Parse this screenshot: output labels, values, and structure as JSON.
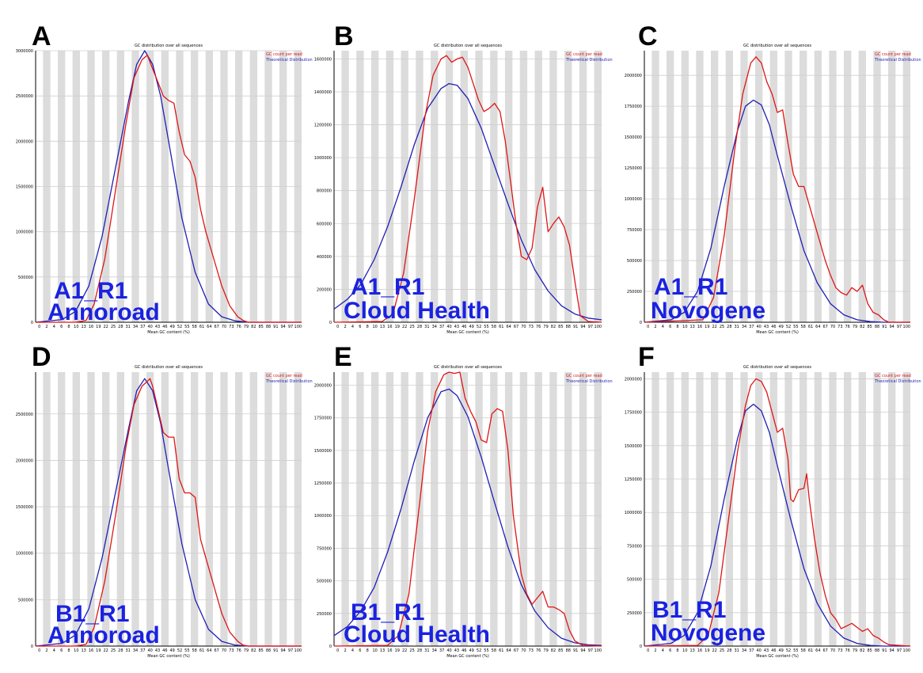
{
  "panels": [
    {
      "letter": "A",
      "overlay_line1": "A1_R1",
      "overlay_line2": "Annoroad",
      "yticks": [
        0,
        500000,
        1000000,
        1500000,
        2000000,
        2500000,
        3000000
      ],
      "ymax": 3000000
    },
    {
      "letter": "B",
      "overlay_line1": "A1_R1",
      "overlay_line2": "Cloud Health",
      "yticks": [
        0,
        200000,
        400000,
        600000,
        800000,
        1000000,
        1200000,
        1400000,
        1600000
      ],
      "ymax": 1650000
    },
    {
      "letter": "C",
      "overlay_line1": "A1_R1",
      "overlay_line2": "Novogene",
      "yticks": [
        0,
        250000,
        500000,
        750000,
        1000000,
        1250000,
        1500000,
        1750000,
        2000000
      ],
      "ymax": 2200000
    },
    {
      "letter": "D",
      "overlay_line1": "B1_R1",
      "overlay_line2": "Annoroad",
      "yticks": [
        0,
        500000,
        1000000,
        1500000,
        2000000,
        2500000
      ],
      "ymax": 2950000
    },
    {
      "letter": "E",
      "overlay_line1": "B1_R1",
      "overlay_line2": "Cloud Health",
      "yticks": [
        0,
        250000,
        500000,
        750000,
        1000000,
        1250000,
        1500000,
        1750000,
        2000000
      ],
      "ymax": 2100000
    },
    {
      "letter": "F",
      "overlay_line1": "B1_R1",
      "overlay_line2": "Novogene",
      "yticks": [
        0,
        250000,
        500000,
        750000,
        1000000,
        1250000,
        1500000,
        1750000,
        2000000
      ],
      "ymax": 2050000
    }
  ],
  "common": {
    "chart_title": "GC distribution over all sequences",
    "x_axis_label": "Mean GC content (%)",
    "legend_observed": "GC count per read",
    "legend_theoretical": "Theoretical Distribution",
    "xticks": [
      "0",
      "2",
      "4",
      "6",
      "8",
      "10",
      "13",
      "16",
      "19",
      "22",
      "25",
      "28",
      "31",
      "34",
      "37",
      "40",
      "43",
      "46",
      "49",
      "52",
      "55",
      "58",
      "61",
      "64",
      "67",
      "70",
      "73",
      "76",
      "79",
      "82",
      "85",
      "88",
      "91",
      "94",
      "97",
      "100"
    ],
    "colors": {
      "observed": "#e01515",
      "theoretical": "#1f1fb4",
      "overlay_text": "#1a22e0",
      "grid_band": "#dcdcdc"
    }
  },
  "chart_data": [
    {
      "type": "line",
      "panel": "A",
      "title": "GC distribution over all sequences",
      "xlabel": "Mean GC content (%)",
      "xlim": [
        0,
        100
      ],
      "ylim": [
        0,
        3000000
      ],
      "series": [
        {
          "name": "GC count per read",
          "x": [
            0,
            15,
            19,
            22,
            26,
            30,
            34,
            37,
            40,
            42,
            44,
            46,
            48,
            50,
            52,
            54,
            56,
            58,
            60,
            62,
            64,
            67,
            70,
            73,
            76,
            78,
            80,
            100
          ],
          "values": [
            0,
            0,
            20000,
            200000,
            700000,
            1450000,
            2200000,
            2700000,
            2900000,
            2950000,
            2800000,
            2650000,
            2500000,
            2450000,
            2420000,
            2100000,
            1850000,
            1780000,
            1600000,
            1250000,
            1000000,
            700000,
            400000,
            180000,
            60000,
            20000,
            0,
            0
          ]
        },
        {
          "name": "Theoretical Distribution",
          "x": [
            0,
            10,
            15,
            20,
            25,
            30,
            35,
            38,
            41,
            44,
            47,
            50,
            55,
            60,
            65,
            70,
            75,
            80,
            85,
            100
          ],
          "values": [
            0,
            30000,
            120000,
            400000,
            950000,
            1700000,
            2450000,
            2850000,
            3000000,
            2850000,
            2500000,
            2000000,
            1150000,
            550000,
            200000,
            60000,
            15000,
            0,
            0,
            0
          ]
        }
      ]
    },
    {
      "type": "line",
      "panel": "B",
      "title": "GC distribution over all sequences",
      "xlabel": "Mean GC content (%)",
      "xlim": [
        0,
        100
      ],
      "ylim": [
        0,
        1650000
      ],
      "series": [
        {
          "name": "GC count per read",
          "x": [
            0,
            18,
            22,
            26,
            30,
            34,
            37,
            40,
            42,
            44,
            46,
            48,
            50,
            52,
            54,
            56,
            58,
            60,
            62,
            64,
            66,
            68,
            70,
            72,
            74,
            76,
            78,
            80,
            82,
            84,
            86,
            88,
            90,
            92,
            95,
            100
          ],
          "values": [
            0,
            5000,
            50000,
            300000,
            750000,
            1250000,
            1500000,
            1600000,
            1620000,
            1580000,
            1600000,
            1610000,
            1550000,
            1450000,
            1350000,
            1280000,
            1300000,
            1330000,
            1280000,
            1100000,
            850000,
            600000,
            400000,
            380000,
            450000,
            700000,
            820000,
            550000,
            600000,
            640000,
            580000,
            470000,
            250000,
            40000,
            5000,
            0
          ]
        },
        {
          "name": "Theoretical Distribution",
          "x": [
            0,
            5,
            10,
            15,
            20,
            25,
            30,
            35,
            40,
            43,
            46,
            50,
            55,
            60,
            65,
            70,
            75,
            80,
            85,
            90,
            95,
            100
          ],
          "values": [
            80000,
            140000,
            230000,
            380000,
            580000,
            820000,
            1080000,
            1300000,
            1420000,
            1450000,
            1440000,
            1360000,
            1180000,
            950000,
            720000,
            500000,
            320000,
            190000,
            100000,
            50000,
            25000,
            15000
          ]
        }
      ]
    },
    {
      "type": "line",
      "panel": "C",
      "title": "GC distribution over all sequences",
      "xlabel": "Mean GC content (%)",
      "xlim": [
        0,
        100
      ],
      "ylim": [
        0,
        2200000
      ],
      "series": [
        {
          "name": "GC count per read",
          "x": [
            0,
            22,
            26,
            30,
            34,
            37,
            40,
            42,
            44,
            46,
            48,
            50,
            52,
            54,
            56,
            58,
            60,
            62,
            64,
            66,
            68,
            70,
            72,
            74,
            76,
            78,
            80,
            82,
            84,
            86,
            88,
            90,
            92,
            100
          ],
          "values": [
            0,
            20000,
            200000,
            700000,
            1400000,
            1850000,
            2100000,
            2150000,
            2100000,
            1950000,
            1850000,
            1700000,
            1720000,
            1450000,
            1200000,
            1100000,
            1100000,
            950000,
            800000,
            650000,
            500000,
            380000,
            280000,
            240000,
            220000,
            280000,
            250000,
            300000,
            150000,
            80000,
            60000,
            20000,
            0,
            0
          ]
        },
        {
          "name": "Theoretical Distribution",
          "x": [
            0,
            10,
            15,
            20,
            25,
            30,
            35,
            38,
            41,
            44,
            47,
            50,
            55,
            60,
            65,
            70,
            75,
            80,
            85,
            90,
            100
          ],
          "values": [
            0,
            20000,
            80000,
            250000,
            600000,
            1100000,
            1550000,
            1750000,
            1800000,
            1760000,
            1600000,
            1350000,
            950000,
            580000,
            320000,
            150000,
            60000,
            20000,
            5000,
            0,
            0
          ]
        }
      ]
    },
    {
      "type": "line",
      "panel": "D",
      "title": "GC distribution over all sequences",
      "xlabel": "Mean GC content (%)",
      "xlim": [
        0,
        100
      ],
      "ylim": [
        0,
        2950000
      ],
      "series": [
        {
          "name": "GC count per read",
          "x": [
            0,
            15,
            19,
            22,
            26,
            30,
            34,
            37,
            40,
            42,
            43,
            44,
            46,
            48,
            50,
            52,
            54,
            56,
            58,
            60,
            62,
            64,
            67,
            70,
            73,
            76,
            78,
            80,
            100
          ],
          "values": [
            0,
            0,
            20000,
            200000,
            700000,
            1400000,
            2150000,
            2600000,
            2800000,
            2850000,
            2880000,
            2800000,
            2550000,
            2300000,
            2250000,
            2250000,
            1800000,
            1650000,
            1650000,
            1600000,
            1150000,
            950000,
            650000,
            350000,
            150000,
            50000,
            10000,
            0,
            0
          ]
        },
        {
          "name": "Theoretical Distribution",
          "x": [
            0,
            10,
            15,
            20,
            25,
            30,
            35,
            38,
            41,
            44,
            47,
            50,
            55,
            60,
            65,
            70,
            75,
            80,
            100
          ],
          "values": [
            0,
            30000,
            120000,
            400000,
            950000,
            1650000,
            2350000,
            2750000,
            2880000,
            2750000,
            2400000,
            1900000,
            1100000,
            500000,
            180000,
            50000,
            10000,
            0,
            0
          ]
        }
      ]
    },
    {
      "type": "line",
      "panel": "E",
      "title": "GC distribution over all sequences",
      "xlabel": "Mean GC content (%)",
      "xlim": [
        0,
        100
      ],
      "ylim": [
        0,
        2100000
      ],
      "series": [
        {
          "name": "GC count per read",
          "x": [
            0,
            20,
            24,
            28,
            32,
            35,
            38,
            41,
            43,
            45,
            47,
            49,
            51,
            53,
            55,
            57,
            59,
            61,
            63,
            65,
            67,
            70,
            72,
            74,
            76,
            78,
            80,
            82,
            84,
            86,
            88,
            90,
            93,
            100
          ],
          "values": [
            0,
            5000,
            80000,
            400000,
            1100000,
            1650000,
            1950000,
            2080000,
            2100000,
            2090000,
            2100000,
            1900000,
            1800000,
            1720000,
            1580000,
            1560000,
            1780000,
            1820000,
            1800000,
            1500000,
            1000000,
            550000,
            400000,
            320000,
            370000,
            420000,
            300000,
            300000,
            280000,
            250000,
            120000,
            40000,
            5000,
            0
          ]
        },
        {
          "name": "Theoretical Distribution",
          "x": [
            0,
            5,
            10,
            15,
            20,
            25,
            30,
            35,
            40,
            43,
            46,
            50,
            55,
            60,
            65,
            70,
            75,
            80,
            85,
            90,
            95,
            100
          ],
          "values": [
            80000,
            150000,
            270000,
            450000,
            720000,
            1050000,
            1420000,
            1750000,
            1950000,
            1970000,
            1920000,
            1760000,
            1450000,
            1100000,
            760000,
            470000,
            270000,
            140000,
            60000,
            25000,
            10000,
            5000
          ]
        }
      ]
    },
    {
      "type": "line",
      "panel": "F",
      "title": "GC distribution over all sequences",
      "xlabel": "Mean GC content (%)",
      "xlim": [
        0,
        100
      ],
      "ylim": [
        0,
        2050000
      ],
      "series": [
        {
          "name": "GC count per read",
          "x": [
            0,
            20,
            24,
            28,
            32,
            35,
            38,
            40,
            42,
            44,
            46,
            48,
            50,
            52,
            54,
            55,
            56,
            58,
            60,
            61,
            62,
            64,
            66,
            68,
            70,
            72,
            74,
            76,
            78,
            80,
            82,
            84,
            86,
            88,
            90,
            92,
            100
          ],
          "values": [
            0,
            5000,
            80000,
            400000,
            1000000,
            1450000,
            1800000,
            1950000,
            2000000,
            1980000,
            1900000,
            1750000,
            1600000,
            1630000,
            1400000,
            1100000,
            1080000,
            1170000,
            1180000,
            1290000,
            1100000,
            800000,
            550000,
            380000,
            250000,
            200000,
            130000,
            150000,
            170000,
            140000,
            110000,
            130000,
            80000,
            60000,
            30000,
            10000,
            0
          ]
        },
        {
          "name": "Theoretical Distribution",
          "x": [
            0,
            10,
            15,
            20,
            25,
            30,
            35,
            38,
            41,
            44,
            47,
            50,
            55,
            60,
            65,
            70,
            75,
            80,
            85,
            90,
            100
          ],
          "values": [
            0,
            20000,
            80000,
            250000,
            600000,
            1100000,
            1550000,
            1760000,
            1810000,
            1760000,
            1600000,
            1350000,
            950000,
            580000,
            320000,
            150000,
            60000,
            20000,
            5000,
            0,
            0
          ]
        }
      ]
    }
  ]
}
